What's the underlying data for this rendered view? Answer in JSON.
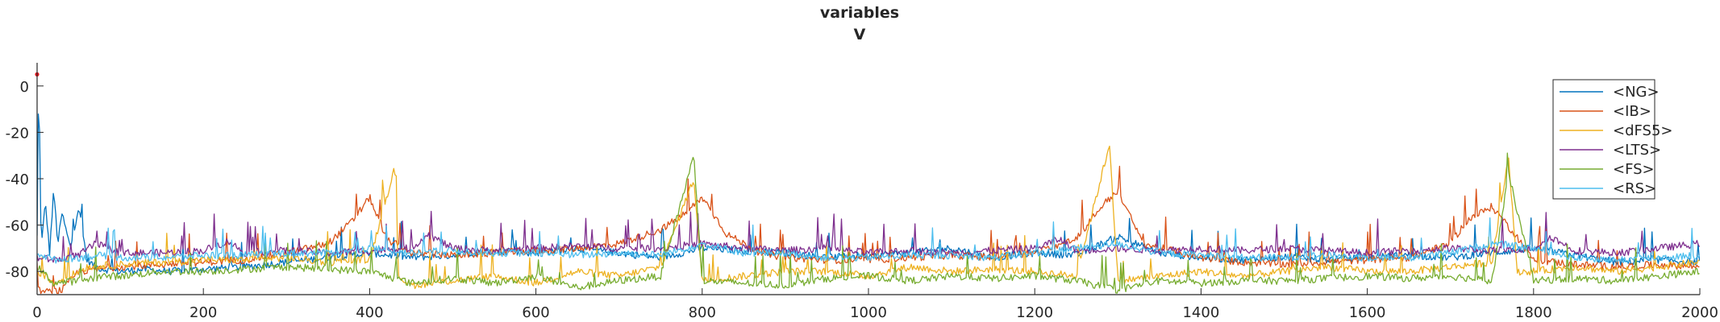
{
  "figure": {
    "title_lines": [
      "variables",
      "V"
    ]
  },
  "chart_data": {
    "type": "line",
    "title": "variables\nV",
    "xlabel": "",
    "ylabel": "",
    "xlim": [
      0,
      2000
    ],
    "ylim": [
      -90,
      10
    ],
    "xticks": [
      0,
      200,
      400,
      600,
      800,
      1000,
      1200,
      1400,
      1600,
      1800,
      2000
    ],
    "yticks": [
      0,
      -20,
      -40,
      -60,
      -80
    ],
    "grid": false,
    "legend_position": "top-right",
    "marker": {
      "x": 0,
      "y": 5,
      "color": "#e8141c"
    },
    "series": [
      {
        "name": "<NG>",
        "color": "#0072BD",
        "x": [
          0,
          2,
          5,
          10,
          15,
          20,
          25,
          30,
          40,
          50,
          60,
          70,
          80,
          100,
          130,
          160,
          200,
          250,
          300,
          350,
          400,
          450,
          500,
          550,
          600,
          650,
          700,
          750,
          800,
          850,
          900,
          950,
          1000,
          1050,
          1100,
          1150,
          1200,
          1250,
          1300,
          1350,
          1400,
          1450,
          1500,
          1550,
          1600,
          1650,
          1700,
          1750,
          1800,
          1850,
          1900,
          1950,
          2000
        ],
        "y": [
          -65,
          5,
          -70,
          -50,
          -72,
          -45,
          -68,
          -55,
          -70,
          -52,
          -75,
          -78,
          -79,
          -80,
          -79,
          -80,
          -79,
          -78,
          -76,
          -74,
          -72,
          -74,
          -73,
          -71,
          -72,
          -70,
          -72,
          -74,
          -70,
          -71,
          -72,
          -74,
          -73,
          -72,
          -70,
          -74,
          -72,
          -73,
          -65,
          -72,
          -74,
          -75,
          -74,
          -75,
          -74,
          -73,
          -74,
          -72,
          -70,
          -73,
          -76,
          -75,
          -76
        ]
      },
      {
        "name": "<IB>",
        "color": "#D95319",
        "x": [
          0,
          10,
          30,
          50,
          100,
          150,
          200,
          250,
          300,
          350,
          380,
          400,
          420,
          450,
          500,
          550,
          600,
          650,
          700,
          750,
          780,
          800,
          830,
          870,
          900,
          950,
          1000,
          1050,
          1100,
          1150,
          1200,
          1250,
          1280,
          1300,
          1330,
          1400,
          1450,
          1500,
          1550,
          1600,
          1650,
          1700,
          1720,
          1750,
          1780,
          1800,
          1850,
          1900,
          1950,
          2000
        ],
        "y": [
          -88,
          -89,
          -88,
          -80,
          -78,
          -77,
          -76,
          -75,
          -72,
          -68,
          -58,
          -48,
          -66,
          -72,
          -73,
          -72,
          -71,
          -70,
          -68,
          -62,
          -55,
          -48,
          -64,
          -72,
          -74,
          -75,
          -75,
          -74,
          -73,
          -74,
          -72,
          -66,
          -52,
          -45,
          -68,
          -74,
          -76,
          -77,
          -76,
          -75,
          -74,
          -68,
          -58,
          -52,
          -65,
          -75,
          -77,
          -78,
          -77,
          -78
        ]
      },
      {
        "name": "<dFS5>",
        "color": "#EDB120",
        "x": [
          0,
          10,
          20,
          40,
          60,
          100,
          150,
          200,
          250,
          300,
          350,
          400,
          430,
          435,
          450,
          500,
          550,
          600,
          650,
          700,
          750,
          790,
          800,
          850,
          900,
          950,
          1000,
          1050,
          1100,
          1150,
          1200,
          1250,
          1290,
          1300,
          1350,
          1400,
          1450,
          1500,
          1550,
          1600,
          1650,
          1700,
          1750,
          1770,
          1780,
          1800,
          1850,
          1900,
          1950,
          2000
        ],
        "y": [
          -80,
          -82,
          -85,
          -82,
          -78,
          -77,
          -76,
          -75,
          -75,
          -74,
          -76,
          -75,
          -35,
          -82,
          -86,
          -84,
          -82,
          -85,
          -80,
          -82,
          -78,
          -40,
          -84,
          -82,
          -80,
          -80,
          -82,
          -78,
          -80,
          -79,
          -80,
          -82,
          -25,
          -84,
          -82,
          -80,
          -82,
          -80,
          -78,
          -80,
          -80,
          -78,
          -76,
          -30,
          -80,
          -80,
          -78,
          -80,
          -78,
          -76
        ]
      },
      {
        "name": "<LTS>",
        "color": "#7E2F8E",
        "x": [
          0,
          20,
          50,
          70,
          100,
          150,
          200,
          230,
          250,
          300,
          350,
          400,
          450,
          470,
          500,
          550,
          600,
          650,
          700,
          750,
          800,
          850,
          900,
          950,
          1000,
          1050,
          1100,
          1150,
          1200,
          1230,
          1250,
          1300,
          1350,
          1400,
          1450,
          1500,
          1550,
          1600,
          1650,
          1700,
          1750,
          1800,
          1820,
          1850,
          1900,
          1950,
          2000
        ],
        "y": [
          -74,
          -75,
          -73,
          -68,
          -72,
          -72,
          -71,
          -67,
          -72,
          -71,
          -72,
          -71,
          -70,
          -64,
          -70,
          -71,
          -70,
          -69,
          -70,
          -70,
          -68,
          -70,
          -71,
          -70,
          -72,
          -71,
          -72,
          -71,
          -70,
          -66,
          -71,
          -70,
          -71,
          -70,
          -71,
          -70,
          -71,
          -72,
          -71,
          -70,
          -71,
          -70,
          -65,
          -71,
          -72,
          -70,
          -68
        ]
      },
      {
        "name": "<FS>",
        "color": "#77AC30",
        "x": [
          0,
          20,
          50,
          80,
          100,
          150,
          200,
          250,
          300,
          350,
          400,
          420,
          450,
          500,
          550,
          600,
          650,
          700,
          750,
          790,
          800,
          850,
          900,
          950,
          1000,
          1050,
          1100,
          1150,
          1200,
          1250,
          1300,
          1350,
          1400,
          1450,
          1500,
          1550,
          1600,
          1650,
          1700,
          1750,
          1770,
          1800,
          1850,
          1900,
          1950,
          2000
        ],
        "y": [
          -78,
          -85,
          -84,
          -82,
          -82,
          -80,
          -80,
          -79,
          -78,
          -79,
          -80,
          -82,
          -85,
          -83,
          -85,
          -82,
          -87,
          -84,
          -82,
          -30,
          -84,
          -85,
          -86,
          -83,
          -82,
          -84,
          -82,
          -83,
          -82,
          -84,
          -88,
          -84,
          -85,
          -84,
          -84,
          -83,
          -82,
          -83,
          -82,
          -84,
          -38,
          -84,
          -83,
          -84,
          -82,
          -80
        ]
      },
      {
        "name": "<RS>",
        "color": "#4DBEEE",
        "x": [
          0,
          20,
          50,
          80,
          100,
          150,
          200,
          250,
          300,
          350,
          400,
          450,
          500,
          550,
          600,
          650,
          700,
          750,
          800,
          850,
          900,
          950,
          1000,
          1050,
          1100,
          1150,
          1200,
          1250,
          1300,
          1350,
          1400,
          1450,
          1500,
          1550,
          1600,
          1650,
          1700,
          1750,
          1800,
          1850,
          1900,
          1950,
          2000
        ],
        "y": [
          -72,
          -75,
          -74,
          -73,
          -74,
          -74,
          -73,
          -73,
          -72,
          -72,
          -70,
          -72,
          -71,
          -72,
          -72,
          -73,
          -72,
          -73,
          -68,
          -72,
          -72,
          -74,
          -74,
          -73,
          -73,
          -74,
          -72,
          -70,
          -68,
          -72,
          -73,
          -74,
          -74,
          -73,
          -74,
          -74,
          -72,
          -68,
          -70,
          -74,
          -75,
          -74,
          -73
        ]
      }
    ]
  }
}
